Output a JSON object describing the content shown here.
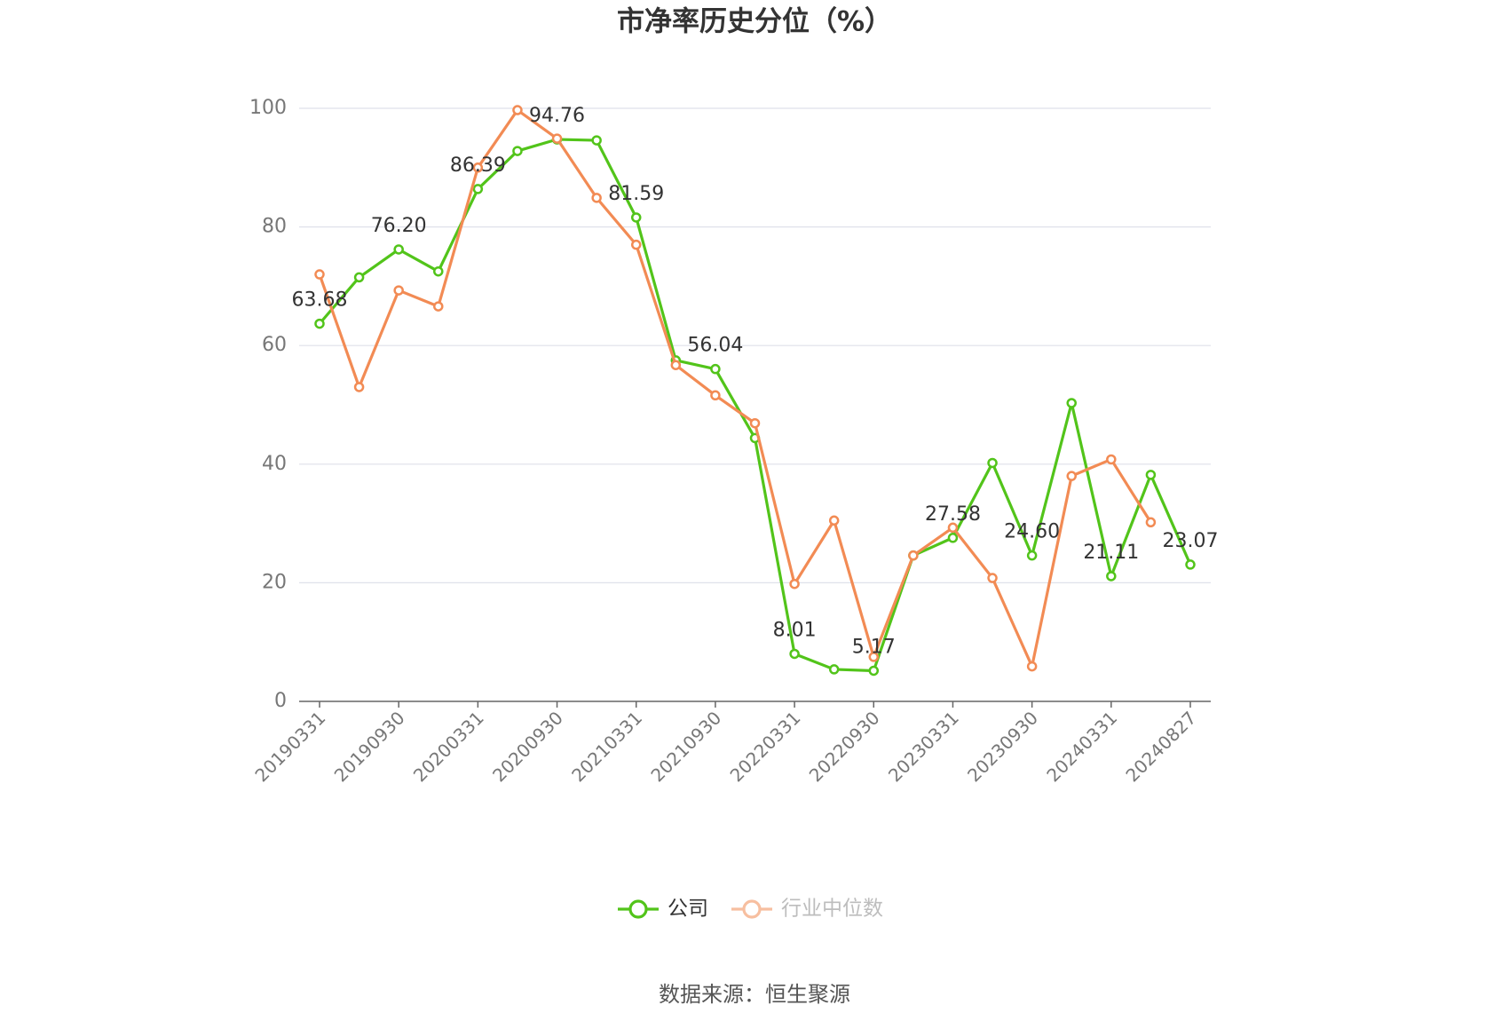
{
  "chart_data": {
    "type": "line",
    "title": "市净率历史分位（%）",
    "categories": [
      "20190331",
      null,
      "20190930",
      null,
      "20200331",
      null,
      "20200930",
      null,
      "20210331",
      null,
      "20210930",
      null,
      "20220331",
      null,
      "20220930",
      null,
      "20230331",
      null,
      "20230930",
      null,
      "20240331",
      null,
      "20240827"
    ],
    "series": [
      {
        "name": "公司",
        "color": "#52c41a",
        "values": [
          63.68,
          71.5,
          76.2,
          72.5,
          86.39,
          92.8,
          94.76,
          94.6,
          81.59,
          57.5,
          56.04,
          44.4,
          8.01,
          5.4,
          5.17,
          24.6,
          27.58,
          40.2,
          24.6,
          50.3,
          21.11,
          38.2,
          23.07
        ],
        "value_labels": [
          "63.68",
          null,
          "76.20",
          null,
          "86.39",
          null,
          "94.76",
          null,
          "81.59",
          null,
          "56.04",
          null,
          "8.01",
          null,
          "5.17",
          null,
          "27.58",
          null,
          "24.60",
          null,
          "21.11",
          null,
          "23.07"
        ]
      },
      {
        "name": "行业中位数",
        "color": "#f28b54",
        "values": [
          72.0,
          53.0,
          69.3,
          66.6,
          90.0,
          99.7,
          94.9,
          84.9,
          77.0,
          56.7,
          51.6,
          46.9,
          19.8,
          30.5,
          7.5,
          24.6,
          29.3,
          20.8,
          5.9,
          38.0,
          40.8,
          30.2,
          null
        ]
      }
    ],
    "ylim": [
      0,
      100
    ],
    "yticks": [
      0,
      20,
      40,
      60,
      80,
      100
    ],
    "grid": true,
    "legend": "bottom",
    "source": "数据来源：恒生聚源"
  }
}
